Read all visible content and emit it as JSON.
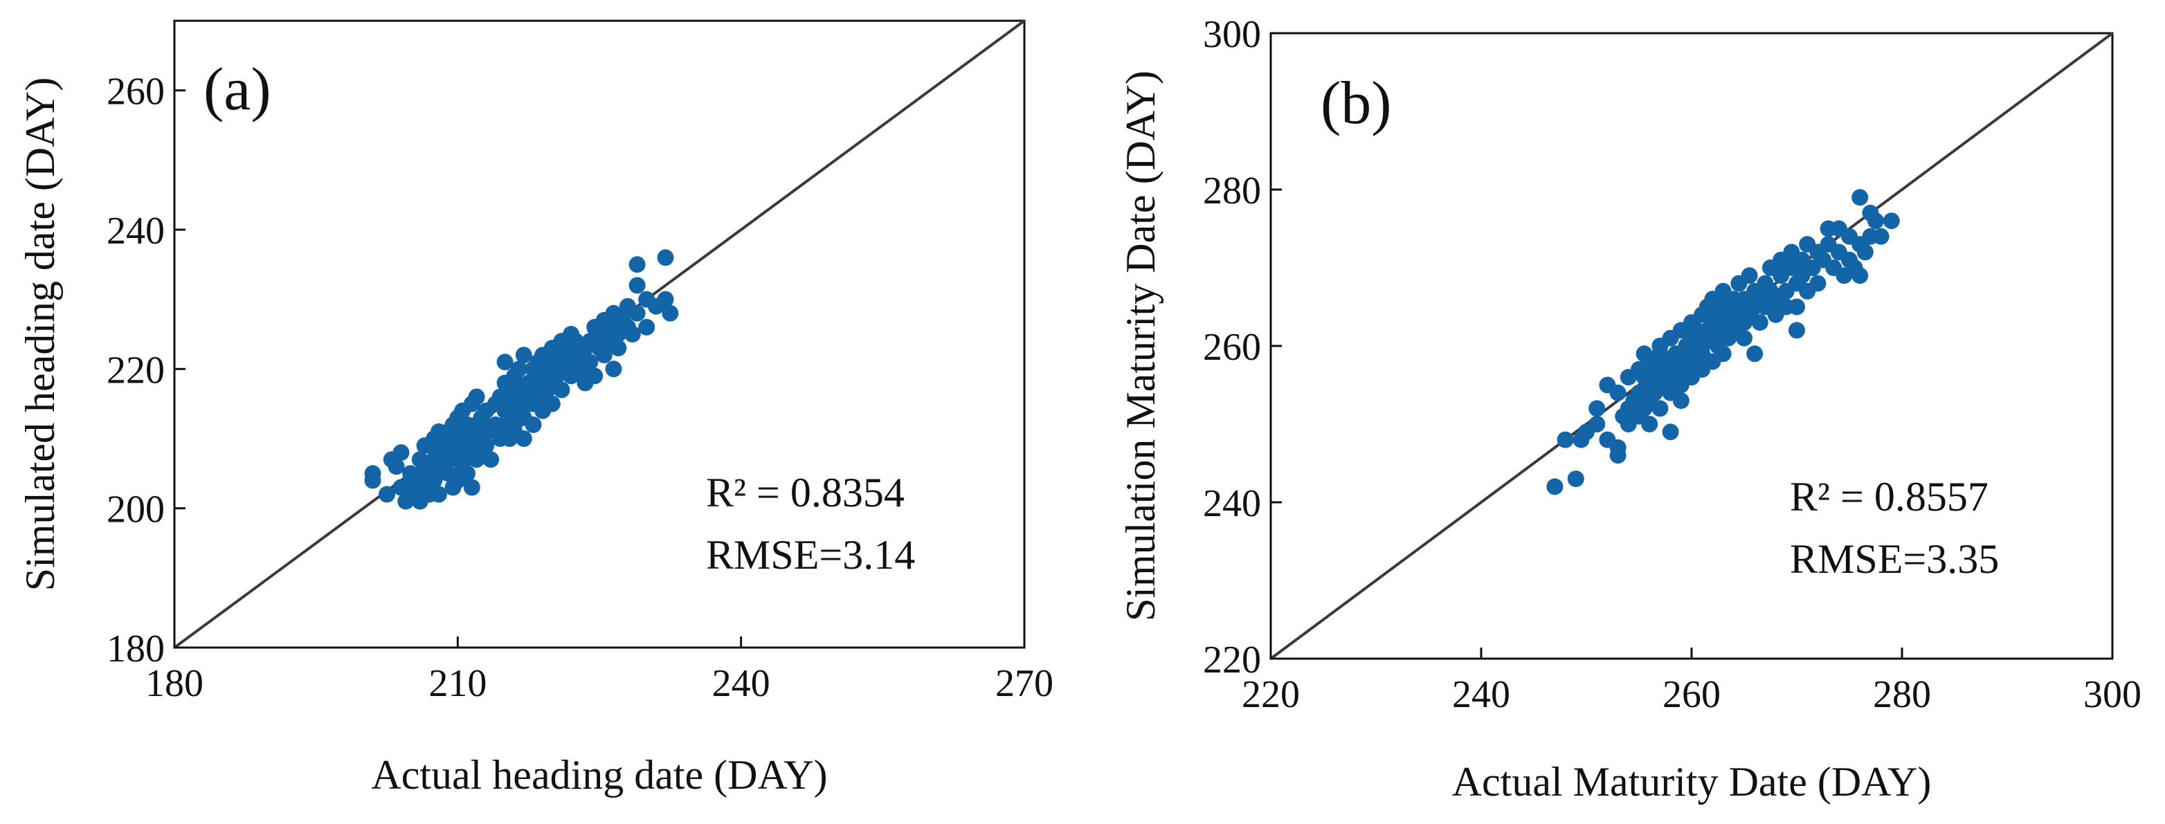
{
  "colors": {
    "points": "#1465a8",
    "reference_line": "#3a3a3a",
    "axes": "#111111",
    "background": "#ffffff"
  },
  "chart_data": [
    {
      "type": "scatter",
      "panel_label": "(a)",
      "xlabel": "Actual heading date (DAY)",
      "ylabel": "Simulated heading date (DAY)",
      "xlim": [
        180,
        270
      ],
      "ylim": [
        180,
        270
      ],
      "xticks": [
        180,
        210,
        240,
        270
      ],
      "yticks": [
        180,
        200,
        220,
        240,
        260
      ],
      "reference_line": "1:1",
      "grid": false,
      "annotations": {
        "r2": "R² = 0.8354",
        "rmse": "RMSE=3.14"
      },
      "points": [
        [
          201,
          204
        ],
        [
          201,
          205
        ],
        [
          202.5,
          202
        ],
        [
          203,
          207
        ],
        [
          203.5,
          206
        ],
        [
          204,
          203
        ],
        [
          204,
          208
        ],
        [
          204.5,
          201
        ],
        [
          205,
          204
        ],
        [
          205,
          205
        ],
        [
          205.5,
          203
        ],
        [
          205.5,
          202
        ],
        [
          206,
          207
        ],
        [
          206,
          201
        ],
        [
          206,
          204
        ],
        [
          206.5,
          209
        ],
        [
          206.5,
          205
        ],
        [
          206.5,
          203
        ],
        [
          207,
          209
        ],
        [
          207,
          202
        ],
        [
          207,
          206
        ],
        [
          207.5,
          210
        ],
        [
          207.5,
          207
        ],
        [
          207.5,
          204
        ],
        [
          208,
          209
        ],
        [
          208,
          205
        ],
        [
          208,
          211
        ],
        [
          208,
          202
        ],
        [
          208.5,
          208
        ],
        [
          208.5,
          206
        ],
        [
          208.5,
          210
        ],
        [
          209,
          207
        ],
        [
          209,
          209
        ],
        [
          209,
          211
        ],
        [
          209,
          205
        ],
        [
          209.5,
          203
        ],
        [
          209.5,
          208
        ],
        [
          209.5,
          212
        ],
        [
          209.5,
          210
        ],
        [
          210,
          204
        ],
        [
          210,
          207
        ],
        [
          210,
          209
        ],
        [
          210,
          211
        ],
        [
          210,
          213
        ],
        [
          210.5,
          206
        ],
        [
          210.5,
          209
        ],
        [
          210.5,
          212
        ],
        [
          210.5,
          214
        ],
        [
          211,
          205
        ],
        [
          211,
          208
        ],
        [
          211,
          210
        ],
        [
          211,
          212
        ],
        [
          211.5,
          203
        ],
        [
          211.5,
          209
        ],
        [
          211.5,
          211
        ],
        [
          211.5,
          215
        ],
        [
          212,
          207
        ],
        [
          212,
          210
        ],
        [
          212,
          212
        ],
        [
          212,
          216
        ],
        [
          212.5,
          208
        ],
        [
          212.5,
          213
        ],
        [
          213,
          211
        ],
        [
          213,
          214
        ],
        [
          213,
          209
        ],
        [
          213.5,
          207
        ],
        [
          214,
          215
        ],
        [
          214,
          212
        ],
        [
          214,
          211
        ],
        [
          214.5,
          210
        ],
        [
          214.5,
          216
        ],
        [
          215,
          214
        ],
        [
          215,
          212
        ],
        [
          215,
          218
        ],
        [
          215,
          221
        ],
        [
          215.5,
          210
        ],
        [
          215.5,
          213
        ],
        [
          215.5,
          216
        ],
        [
          216,
          212
        ],
        [
          216,
          215
        ],
        [
          216,
          219
        ],
        [
          216,
          211
        ],
        [
          216.5,
          214
        ],
        [
          216.5,
          217
        ],
        [
          216.5,
          220
        ],
        [
          217,
          213
        ],
        [
          217,
          216
        ],
        [
          217,
          222
        ],
        [
          217,
          210
        ],
        [
          217.5,
          218
        ],
        [
          217.5,
          215
        ],
        [
          218,
          212
        ],
        [
          218,
          217
        ],
        [
          218,
          220
        ],
        [
          218,
          215
        ],
        [
          218.5,
          219
        ],
        [
          218.5,
          221
        ],
        [
          219,
          216
        ],
        [
          219,
          218
        ],
        [
          219,
          222
        ],
        [
          219,
          214
        ],
        [
          219.5,
          217
        ],
        [
          219.5,
          220
        ],
        [
          220,
          218
        ],
        [
          220,
          221
        ],
        [
          220,
          223
        ],
        [
          220,
          215
        ],
        [
          220.5,
          219
        ],
        [
          220.5,
          222
        ],
        [
          221,
          220
        ],
        [
          221,
          224
        ],
        [
          221,
          217
        ],
        [
          221.5,
          221
        ],
        [
          221.5,
          223
        ],
        [
          222,
          219
        ],
        [
          222,
          222
        ],
        [
          222,
          225
        ],
        [
          222.5,
          221
        ],
        [
          222.5,
          224
        ],
        [
          223,
          222
        ],
        [
          223,
          220
        ],
        [
          223.5,
          223
        ],
        [
          223.5,
          218
        ],
        [
          224,
          224
        ],
        [
          224,
          221
        ],
        [
          224.5,
          226
        ],
        [
          224.5,
          219
        ],
        [
          225,
          223
        ],
        [
          225,
          225
        ],
        [
          225.5,
          227
        ],
        [
          225.5,
          222
        ],
        [
          226,
          224
        ],
        [
          226,
          226
        ],
        [
          226.5,
          228
        ],
        [
          226.5,
          220
        ],
        [
          227,
          225
        ],
        [
          227,
          223
        ],
        [
          227.5,
          227
        ],
        [
          228,
          226
        ],
        [
          228,
          229
        ],
        [
          228.5,
          225
        ],
        [
          229,
          235
        ],
        [
          229,
          232
        ],
        [
          229,
          228
        ],
        [
          230,
          230
        ],
        [
          230,
          226
        ],
        [
          231,
          229
        ],
        [
          232,
          236
        ],
        [
          232,
          230
        ],
        [
          232.5,
          228
        ]
      ]
    },
    {
      "type": "scatter",
      "panel_label": "(b)",
      "xlabel": "Actual Maturity Date (DAY)",
      "ylabel": "Simulation Maturity Date (DAY)",
      "xlim": [
        220,
        300
      ],
      "ylim": [
        220,
        300
      ],
      "xticks": [
        220,
        240,
        260,
        280,
        300
      ],
      "yticks": [
        220,
        240,
        260,
        280,
        300
      ],
      "reference_line": "1:1",
      "grid": false,
      "annotations": {
        "r2": "R² = 0.8557",
        "rmse": "RMSE=3.35"
      },
      "points": [
        [
          247,
          242
        ],
        [
          248,
          248
        ],
        [
          249,
          243
        ],
        [
          249.5,
          248
        ],
        [
          250,
          249
        ],
        [
          251,
          252
        ],
        [
          251,
          250
        ],
        [
          252,
          255
        ],
        [
          252,
          248
        ],
        [
          253,
          254
        ],
        [
          253,
          247
        ],
        [
          253,
          246
        ],
        [
          253.5,
          251
        ],
        [
          254,
          256
        ],
        [
          254,
          252
        ],
        [
          254,
          250
        ],
        [
          254.5,
          253
        ],
        [
          255,
          257
        ],
        [
          255,
          251
        ],
        [
          255,
          254
        ],
        [
          255.5,
          259
        ],
        [
          255.5,
          256
        ],
        [
          255.5,
          252
        ],
        [
          256,
          258
        ],
        [
          256,
          255
        ],
        [
          256,
          253
        ],
        [
          256,
          250
        ],
        [
          256.5,
          257
        ],
        [
          256.5,
          254
        ],
        [
          257,
          259
        ],
        [
          257,
          256
        ],
        [
          257,
          252
        ],
        [
          257,
          260
        ],
        [
          257.5,
          255
        ],
        [
          257.5,
          258
        ],
        [
          258,
          257
        ],
        [
          258,
          254
        ],
        [
          258,
          249
        ],
        [
          258,
          261
        ],
        [
          258.5,
          256
        ],
        [
          258.5,
          259
        ],
        [
          259,
          258
        ],
        [
          259,
          255
        ],
        [
          259,
          262
        ],
        [
          259,
          253
        ],
        [
          259.5,
          257
        ],
        [
          259.5,
          260
        ],
        [
          260,
          259
        ],
        [
          260,
          256
        ],
        [
          260,
          263
        ],
        [
          260,
          261
        ],
        [
          260.5,
          258
        ],
        [
          260.5,
          262
        ],
        [
          261,
          260
        ],
        [
          261,
          257
        ],
        [
          261,
          264
        ],
        [
          261,
          259
        ],
        [
          261.5,
          262
        ],
        [
          261.5,
          265
        ],
        [
          262,
          261
        ],
        [
          262,
          258
        ],
        [
          262,
          266
        ],
        [
          262,
          263
        ],
        [
          262.5,
          260
        ],
        [
          262.5,
          264
        ],
        [
          263,
          262
        ],
        [
          263,
          265
        ],
        [
          263,
          259
        ],
        [
          263,
          267
        ],
        [
          263.5,
          263
        ],
        [
          263.5,
          261
        ],
        [
          264,
          264
        ],
        [
          264,
          266
        ],
        [
          264,
          262
        ],
        [
          264.5,
          265
        ],
        [
          264.5,
          268
        ],
        [
          265,
          263
        ],
        [
          265,
          266
        ],
        [
          265,
          261
        ],
        [
          265.5,
          264
        ],
        [
          265.5,
          269
        ],
        [
          266,
          265
        ],
        [
          266,
          267
        ],
        [
          266,
          259
        ],
        [
          266.5,
          266
        ],
        [
          266.5,
          263
        ],
        [
          267,
          268
        ],
        [
          267,
          265
        ],
        [
          267.5,
          267
        ],
        [
          267.5,
          270
        ],
        [
          268,
          266
        ],
        [
          268,
          264
        ],
        [
          268.5,
          269
        ],
        [
          268.5,
          271
        ],
        [
          269,
          267
        ],
        [
          269,
          265
        ],
        [
          269.5,
          270
        ],
        [
          269.5,
          272
        ],
        [
          270,
          268
        ],
        [
          270,
          262
        ],
        [
          270,
          265
        ],
        [
          270.5,
          271
        ],
        [
          270.5,
          269
        ],
        [
          271,
          267
        ],
        [
          271,
          273
        ],
        [
          271.5,
          270
        ],
        [
          272,
          268
        ],
        [
          272,
          272
        ],
        [
          272.5,
          271
        ],
        [
          273,
          273
        ],
        [
          273,
          275
        ],
        [
          273.5,
          270
        ],
        [
          274,
          275
        ],
        [
          274,
          272
        ],
        [
          274.5,
          269
        ],
        [
          275,
          271
        ],
        [
          275,
          274
        ],
        [
          275.5,
          270
        ],
        [
          276,
          279
        ],
        [
          276,
          273
        ],
        [
          276,
          269
        ],
        [
          276.5,
          272
        ],
        [
          277,
          277
        ],
        [
          277,
          274
        ],
        [
          277.5,
          276
        ],
        [
          278,
          274
        ],
        [
          279,
          276
        ]
      ]
    }
  ]
}
